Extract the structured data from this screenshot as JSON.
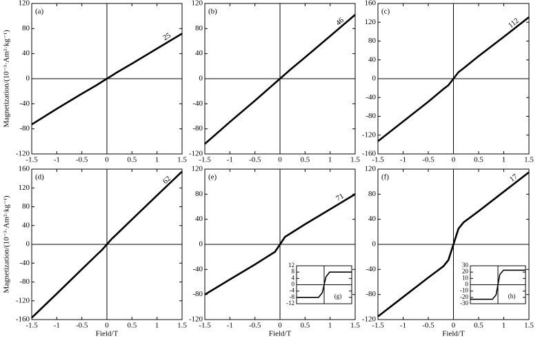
{
  "chart_data": [
    {
      "type": "line",
      "label": "(a)",
      "annotation": "25",
      "ylabel": "Magnetization/(10⁻³·Am²·kg⁻¹)",
      "color": "#000000",
      "x": [
        -1.5,
        -1,
        -0.5,
        -0.2,
        -0.1,
        0,
        0.1,
        0.2,
        0.5,
        1,
        1.5
      ],
      "values": [
        -73,
        -48,
        -24,
        -10,
        -5,
        0,
        5,
        10,
        24,
        48,
        72
      ],
      "xlim": [
        -1.5,
        1.5
      ],
      "ylim": [
        -120,
        120
      ],
      "xticks": [
        -1.5,
        -1,
        -0.5,
        0,
        0.5,
        1,
        1.5
      ],
      "yticks": [
        -120,
        -80,
        -40,
        0,
        40,
        80,
        120
      ]
    },
    {
      "type": "line",
      "label": "(b)",
      "annotation": "46",
      "color": "#000000",
      "x": [
        -1.5,
        -1,
        -0.5,
        -0.2,
        -0.1,
        0,
        0.1,
        0.2,
        0.5,
        1,
        1.5
      ],
      "values": [
        -104,
        -69,
        -35,
        -14,
        -7,
        0,
        7,
        14,
        34,
        68,
        102
      ],
      "xlim": [
        -1.5,
        1.5
      ],
      "ylim": [
        -120,
        120
      ],
      "xticks": [
        -1.5,
        -1,
        -0.5,
        0,
        0.5,
        1,
        1.5
      ],
      "yticks": [
        -120,
        -80,
        -40,
        0,
        40,
        80,
        120
      ]
    },
    {
      "type": "line",
      "label": "(c)",
      "annotation": "112",
      "color": "#000000",
      "x": [
        -1.5,
        -1,
        -0.5,
        -0.2,
        -0.1,
        0,
        0.1,
        0.2,
        0.5,
        1,
        1.5
      ],
      "values": [
        -133,
        -91,
        -49,
        -22,
        -14,
        0,
        14,
        22,
        48,
        89,
        131
      ],
      "xlim": [
        -1.5,
        1.5
      ],
      "ylim": [
        -160,
        160
      ],
      "xticks": [
        -1.5,
        -1,
        -0.5,
        0,
        0.5,
        1,
        1.5
      ],
      "yticks": [
        -160,
        -120,
        -80,
        -40,
        0,
        40,
        80,
        120,
        160
      ]
    },
    {
      "type": "line",
      "label": "(d)",
      "annotation": "62",
      "ylabel": "Magnetization/(10⁻³·Am²·kg⁻¹)",
      "xlabel": "Field/T",
      "color": "#000000",
      "x": [
        -1.5,
        -1,
        -0.5,
        -0.2,
        -0.1,
        0,
        0.1,
        0.2,
        0.5,
        1,
        1.5
      ],
      "values": [
        -156,
        -105,
        -53,
        -22,
        -12,
        0,
        12,
        22,
        53,
        104,
        155
      ],
      "xlim": [
        -1.5,
        1.5
      ],
      "ylim": [
        -160,
        160
      ],
      "xticks": [
        -1.5,
        -1,
        -0.5,
        0,
        0.5,
        1,
        1.5
      ],
      "yticks": [
        -160,
        -120,
        -80,
        -40,
        0,
        40,
        80,
        120,
        160
      ]
    },
    {
      "type": "line",
      "label": "(e)",
      "annotation": "71",
      "xlabel": "Field/T",
      "color": "#000000",
      "x": [
        -1.5,
        -1,
        -0.5,
        -0.2,
        -0.1,
        0,
        0.1,
        0.2,
        0.5,
        1,
        1.5
      ],
      "values": [
        -80,
        -56,
        -32,
        -17,
        -12,
        0,
        12,
        17,
        32,
        56,
        80
      ],
      "xlim": [
        -1.5,
        1.5
      ],
      "ylim": [
        -120,
        120
      ],
      "xticks": [
        -1.5,
        -1,
        -0.5,
        0,
        0.5,
        1,
        1.5
      ],
      "yticks": [
        -120,
        -80,
        -40,
        0,
        40,
        80,
        120
      ]
    },
    {
      "type": "line",
      "label": "(f)",
      "annotation": "17",
      "xlabel": "Field/T",
      "color": "#000000",
      "x": [
        -1.5,
        -1,
        -0.5,
        -0.2,
        -0.1,
        0,
        0.1,
        0.2,
        0.5,
        1,
        1.5
      ],
      "values": [
        -115,
        -84,
        -53,
        -35,
        -25,
        0,
        25,
        35,
        53,
        84,
        115
      ],
      "xlim": [
        -1.5,
        1.5
      ],
      "ylim": [
        -120,
        120
      ],
      "xticks": [
        -1.5,
        -1,
        -0.5,
        0,
        0.5,
        1,
        1.5
      ],
      "yticks": [
        -120,
        -80,
        -40,
        0,
        40,
        80,
        120
      ]
    },
    {
      "type": "line",
      "label": "(g)",
      "color": "#000000",
      "x": [
        -1.5,
        -0.3,
        -0.1,
        0,
        0.1,
        0.3,
        1.5
      ],
      "values": [
        -8,
        -8,
        -5,
        0,
        5,
        8,
        8
      ],
      "xlim": [
        -1.5,
        1.5
      ],
      "ylim": [
        -12,
        12
      ],
      "yticks": [
        -12,
        -8,
        -4,
        0,
        4,
        8,
        12
      ]
    },
    {
      "type": "line",
      "label": "(h)",
      "color": "#000000",
      "x": [
        -1.5,
        -0.3,
        -0.1,
        0,
        0.1,
        0.3,
        1.5
      ],
      "values": [
        -23,
        -23,
        -16,
        0,
        16,
        23,
        23
      ],
      "xlim": [
        -1.5,
        1.5
      ],
      "ylim": [
        -30,
        30
      ],
      "yticks": [
        -30,
        -20,
        -10,
        0,
        10,
        20,
        30
      ]
    }
  ]
}
